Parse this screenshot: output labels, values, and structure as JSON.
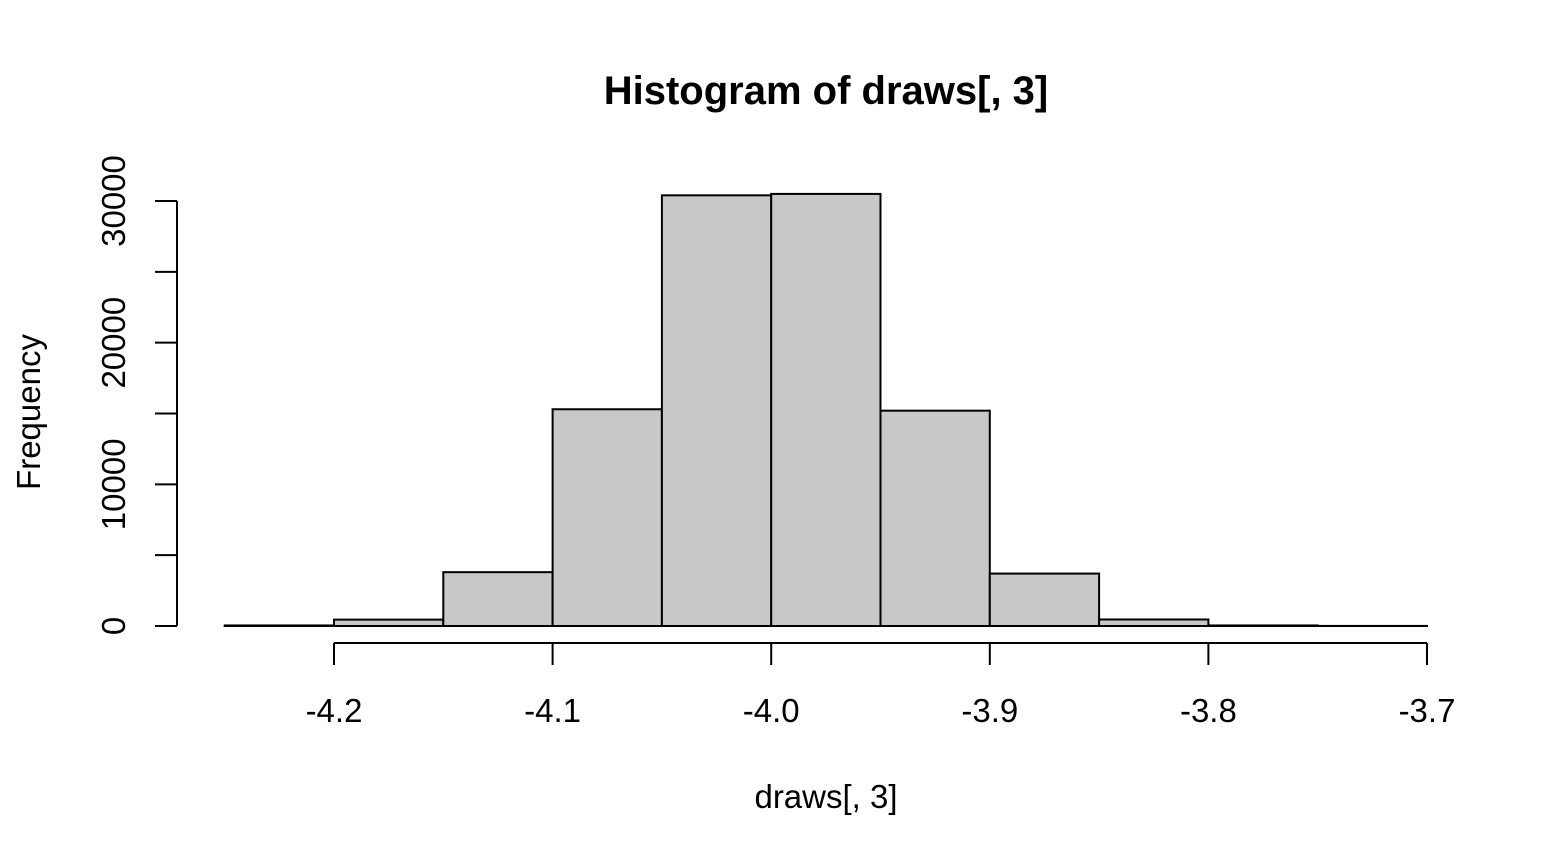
{
  "chart_data": {
    "type": "bar",
    "title": "Histogram of draws[, 3]",
    "xlabel": "draws[, 3]",
    "ylabel": "Frequency",
    "bin_edges": [
      -4.25,
      -4.2,
      -4.15,
      -4.1,
      -4.05,
      -4.0,
      -3.95,
      -3.9,
      -3.85,
      -3.8,
      -3.75,
      -3.7
    ],
    "values": [
      40,
      450,
      3800,
      15300,
      30400,
      30500,
      15200,
      3700,
      460,
      40,
      5
    ],
    "xlim": [
      -4.25,
      -3.7
    ],
    "ylim": [
      0,
      30000
    ],
    "xticks": [
      -4.2,
      -4.1,
      -4.0,
      -3.9,
      -3.8,
      -3.7
    ],
    "xtick_labels": [
      "-4.2",
      "-4.1",
      "-4.0",
      "-3.9",
      "-3.8",
      "-3.7"
    ],
    "yticks": [
      0,
      5000,
      10000,
      15000,
      20000,
      25000,
      30000
    ],
    "ytick_labels": [
      "0",
      "10000",
      "20000",
      "30000"
    ],
    "ytick_label_values": [
      0,
      10000,
      20000,
      30000
    ],
    "bar_fill": "#c8c8c8",
    "bar_stroke": "#000000",
    "grid": false
  }
}
